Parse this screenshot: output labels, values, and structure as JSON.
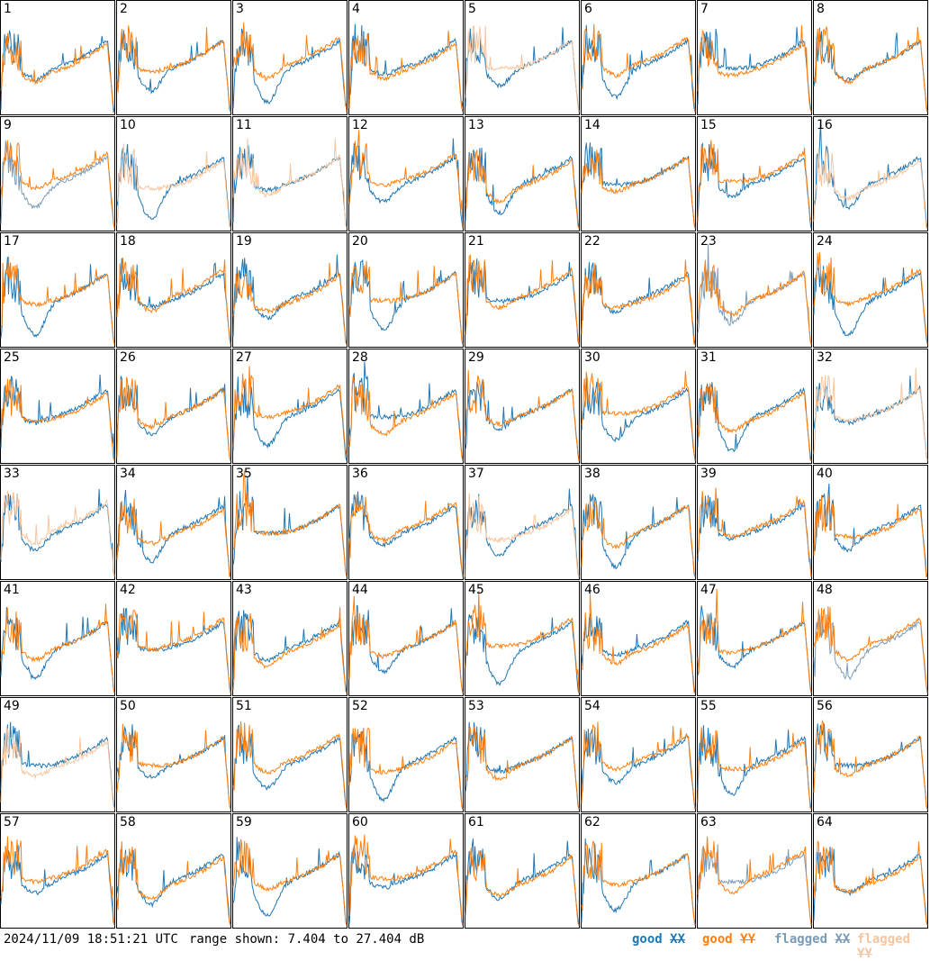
{
  "chart_data": {
    "type": "line",
    "panel_count": 64,
    "panel_labels": [
      "1",
      "2",
      "3",
      "4",
      "5",
      "6",
      "7",
      "8",
      "9",
      "10",
      "11",
      "12",
      "13",
      "14",
      "15",
      "16",
      "17",
      "18",
      "19",
      "20",
      "21",
      "22",
      "23",
      "24",
      "25",
      "26",
      "27",
      "28",
      "29",
      "30",
      "31",
      "32",
      "33",
      "34",
      "35",
      "36",
      "37",
      "38",
      "39",
      "40",
      "41",
      "42",
      "43",
      "44",
      "45",
      "46",
      "47",
      "48",
      "49",
      "50",
      "51",
      "52",
      "53",
      "54",
      "55",
      "56",
      "57",
      "58",
      "59",
      "60",
      "61",
      "62",
      "63",
      "64"
    ],
    "y_range_db": [
      7.404,
      27.404
    ],
    "series": [
      {
        "name": "good XX",
        "color": "#1f77b4"
      },
      {
        "name": "good YY",
        "color": "#ff7f0e"
      },
      {
        "name": "flagged XX",
        "color": "#7a9bb8"
      },
      {
        "name": "flagged YY",
        "color": "#f7c59f"
      }
    ],
    "flagged_panels": {
      "xx": [
        9,
        23,
        48,
        63
      ],
      "yy": [
        5,
        10,
        11,
        16,
        32,
        33,
        37,
        49
      ]
    },
    "grid": false
  },
  "footer": {
    "timestamp": "2024/11/09 18:51:21 UTC",
    "range_text": "range shown: 7.404 to 27.404 dB",
    "legend_good": "good",
    "legend_flagged": "flagged",
    "tag_xx": "XX",
    "tag_yy": "YY"
  }
}
